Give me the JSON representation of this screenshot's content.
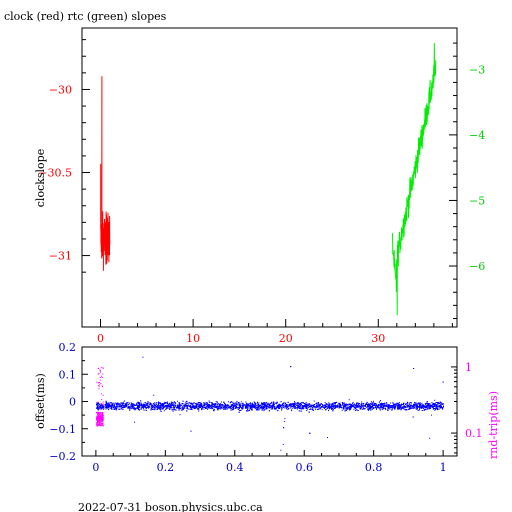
{
  "title": "clock (red) rtc (green) slopes",
  "footer": "2022-07-31 boson.physics.ubc.ca",
  "colors": {
    "clock": "#ff0000",
    "rtc": "#00ee00",
    "offset": "#0000ff",
    "rndtrip": "#ff00ff",
    "axis": "#000000"
  },
  "chart_data": [
    {
      "type": "line",
      "title": "clock (red) rtc (green) slopes",
      "ylabel": "clockslope",
      "xlim": [
        -2,
        38.5
      ],
      "ylim": [
        -31.43,
        -29.63
      ],
      "y2lim": [
        -6.93,
        -2.37
      ],
      "xticks": [
        0,
        10,
        20,
        30
      ],
      "yticks": [
        -30,
        -30.5,
        -31
      ],
      "y2ticks": [
        -3,
        -4,
        -5,
        -6
      ],
      "series": [
        {
          "name": "clock",
          "axis": "left",
          "x_range": [
            0.0,
            1.0
          ],
          "y_min": -31.37,
          "y_max": -29.92
        },
        {
          "name": "rtc",
          "axis": "right",
          "x_range": [
            31.5,
            36.2
          ],
          "y_min": -6.75,
          "y_max": -2.6
        }
      ]
    },
    {
      "type": "scatter",
      "ylabel": "offset(ms)",
      "y2label": "rnd-trip(ms)",
      "xlim": [
        -0.04,
        1.04
      ],
      "ylim": [
        -0.2,
        0.2
      ],
      "y2lim": [
        0.045,
        2.0
      ],
      "y2scale": "log",
      "xticks": [
        0,
        0.2,
        0.4,
        0.6,
        0.8,
        1
      ],
      "yticks": [
        0.2,
        0.1,
        0,
        -0.1,
        -0.2
      ],
      "y2ticks": [
        1,
        0.1
      ],
      "series": [
        {
          "name": "offset",
          "axis": "left",
          "x_range": [
            0,
            1
          ],
          "y_center": -0.015,
          "y_spread": 0.025
        },
        {
          "name": "rnd-trip",
          "axis": "right",
          "x_range": [
            0,
            0.02
          ],
          "y_min": 0.1,
          "y_max": 1.0
        }
      ]
    }
  ]
}
